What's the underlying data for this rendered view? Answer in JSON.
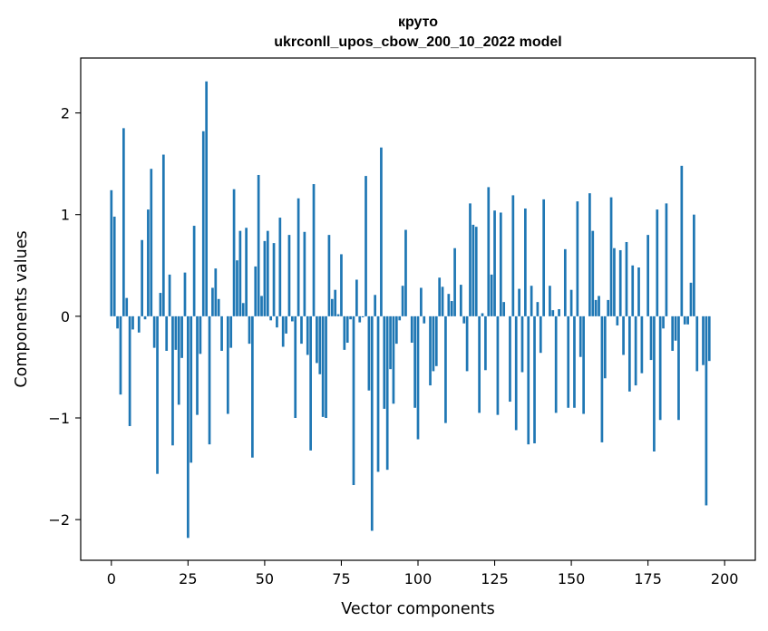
{
  "chart_data": {
    "type": "bar",
    "title": "круто",
    "subtitle": "ukrconll_upos_cbow_200_10_2022 model",
    "xlabel": "Vector components",
    "ylabel": "Components values",
    "xlim": [
      -10,
      210
    ],
    "ylim": [
      -2.4,
      2.54
    ],
    "xticks": [
      0,
      25,
      50,
      75,
      100,
      125,
      150,
      175,
      200
    ],
    "yticks": [
      -2,
      -1,
      0,
      1,
      2
    ],
    "ytick_labels": [
      "−2",
      "−1",
      "0",
      "1",
      "2"
    ],
    "grid": false,
    "color": "#1f77b4",
    "values": [
      1.24,
      0.98,
      -0.12,
      -0.77,
      1.85,
      0.18,
      -1.08,
      -0.13,
      0.0,
      -0.16,
      0.75,
      -0.03,
      1.05,
      1.45,
      -0.31,
      -1.55,
      0.23,
      1.59,
      -0.34,
      0.41,
      -1.27,
      -0.33,
      -0.87,
      -0.41,
      0.43,
      -2.18,
      -1.44,
      0.89,
      -0.97,
      -0.37,
      1.82,
      2.31,
      -1.26,
      0.28,
      0.47,
      0.17,
      -0.34,
      0.0,
      -0.96,
      -0.31,
      1.25,
      0.55,
      0.84,
      0.13,
      0.87,
      -0.27,
      -1.39,
      0.49,
      1.39,
      0.2,
      0.74,
      0.84,
      -0.04,
      0.72,
      -0.11,
      0.97,
      -0.3,
      -0.17,
      0.8,
      -0.05,
      -1.0,
      1.16,
      -0.27,
      0.83,
      -0.38,
      -1.32,
      1.3,
      -0.46,
      -0.57,
      -0.99,
      -1.0,
      0.8,
      0.17,
      0.26,
      0.02,
      0.61,
      -0.33,
      -0.26,
      -0.03,
      -1.66,
      0.36,
      -0.06,
      -0.01,
      1.38,
      -0.73,
      -2.11,
      0.21,
      -1.53,
      1.66,
      -0.91,
      -1.51,
      -0.52,
      -0.86,
      -0.27,
      -0.04,
      0.3,
      0.85,
      0.0,
      -0.26,
      -0.9,
      -1.21,
      0.28,
      -0.07,
      0.0,
      -0.68,
      -0.54,
      -0.49,
      0.38,
      0.29,
      -1.05,
      0.22,
      0.15,
      0.67,
      0.0,
      0.31,
      -0.07,
      -0.54,
      1.11,
      0.9,
      0.88,
      -0.95,
      0.03,
      -0.53,
      1.27,
      0.41,
      1.04,
      -0.97,
      1.02,
      0.14,
      0.0,
      -0.84,
      1.19,
      -1.12,
      0.27,
      -0.55,
      1.06,
      -1.26,
      0.3,
      -1.25,
      0.14,
      -0.36,
      1.15,
      0.0,
      0.3,
      0.06,
      -0.95,
      0.07,
      0.0,
      0.66,
      -0.9,
      0.26,
      -0.9,
      1.13,
      -0.4,
      -0.96,
      0.0,
      1.21,
      0.84,
      0.16,
      0.2,
      -1.24,
      -0.61,
      0.16,
      1.17,
      0.67,
      -0.09,
      0.65,
      -0.38,
      0.73,
      -0.74,
      0.5,
      -0.68,
      0.48,
      -0.56,
      0.0,
      0.8,
      -0.43,
      -1.33,
      1.05,
      -1.02,
      -0.12,
      1.11,
      0.0,
      -0.34,
      -0.24,
      -1.02,
      1.48,
      -0.08,
      -0.08,
      0.33,
      1.0,
      -0.54,
      0.0,
      -0.48,
      -1.86,
      -0.44
    ]
  }
}
